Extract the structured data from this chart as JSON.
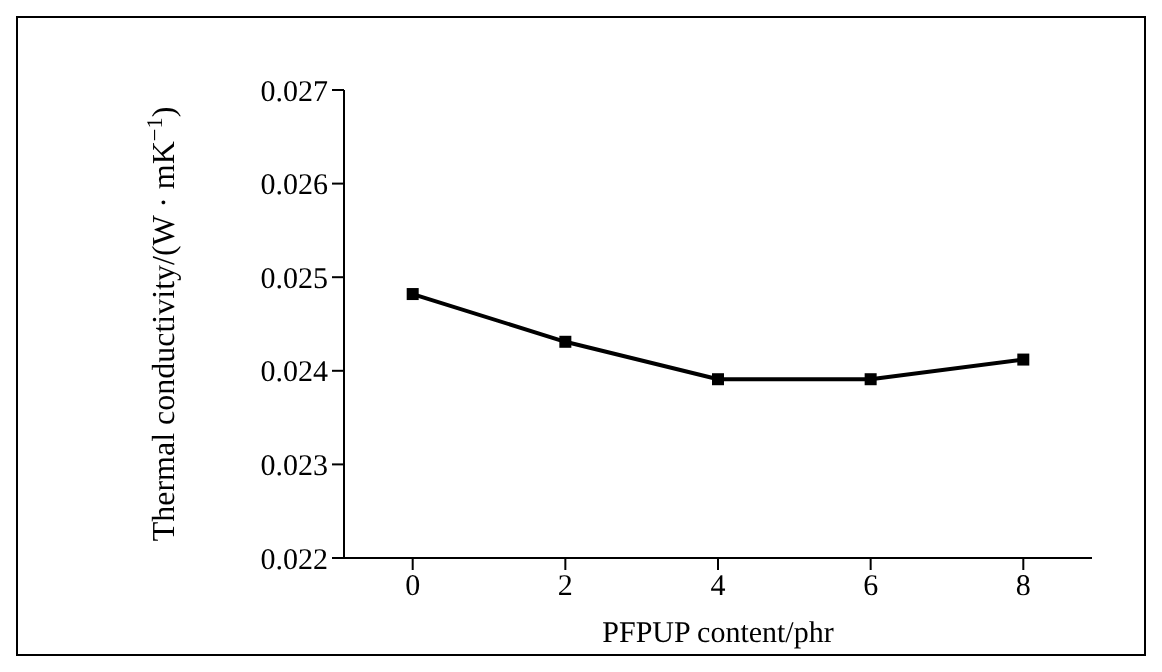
{
  "chart_data": {
    "type": "line",
    "xlabel": "PFPUP content/phr",
    "ylabel": "Thermal conductivity/(W · mK$^{−1}$)",
    "x": [
      0,
      2,
      4,
      6,
      8
    ],
    "series": [
      {
        "color": "#000000",
        "values": [
          0.02482,
          0.02431,
          0.02391,
          0.02391,
          0.02412
        ]
      }
    ],
    "xlim": [
      -0.9,
      8.9
    ],
    "xticks": [
      0,
      2,
      4,
      6,
      8
    ],
    "ylim": [
      0.022,
      0.027
    ],
    "yticks": [
      0.022,
      0.023,
      0.024,
      0.025,
      0.026,
      0.027
    ],
    "grid": false,
    "legend": false,
    "marker": "square",
    "line_style": "solid"
  }
}
